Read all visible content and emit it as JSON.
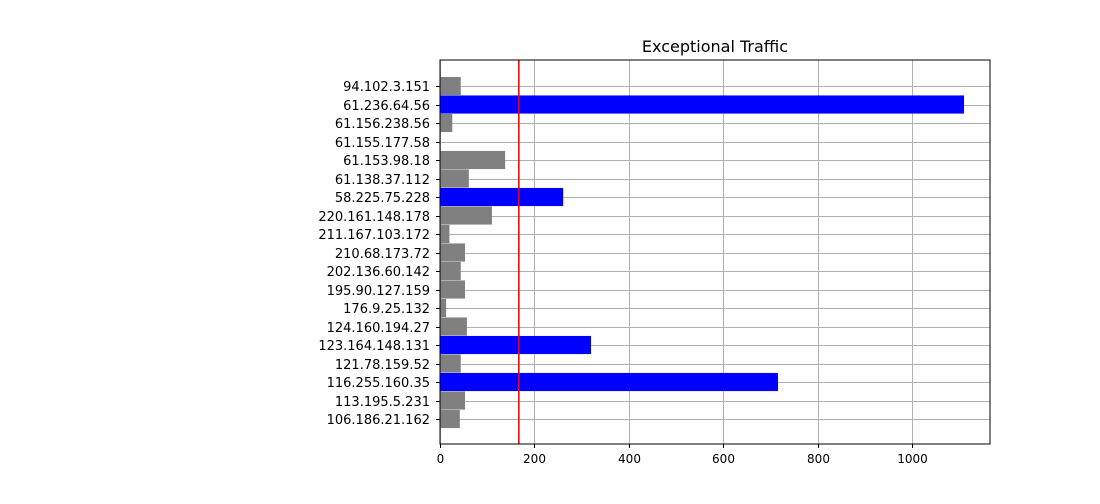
{
  "chart_data": {
    "type": "bar",
    "orientation": "horizontal",
    "title": "Exceptional Traffic",
    "xlabel": "",
    "ylabel": "",
    "xlim": [
      0,
      1165
    ],
    "xticks": [
      0,
      200,
      400,
      600,
      800,
      1000
    ],
    "grid": true,
    "threshold": 167,
    "threshold_color": "#ff0000",
    "colors": {
      "normal": "#808080",
      "exceptional": "#0000ff"
    },
    "categories": [
      "94.102.3.151",
      "61.236.64.56",
      "61.156.238.56",
      "61.155.177.58",
      "61.153.98.18",
      "61.138.37.112",
      "58.225.75.228",
      "220.161.148.178",
      "211.167.103.172",
      "210.68.173.72",
      "202.136.60.142",
      "195.90.127.159",
      "176.9.25.132",
      "124.160.194.27",
      "123.164.148.131",
      "121.78.159.52",
      "116.255.160.35",
      "113.195.5.231",
      "106.186.21.162"
    ],
    "values": [
      44,
      1110,
      26,
      0,
      138,
      61,
      261,
      110,
      20,
      53,
      44,
      53,
      13,
      57,
      320,
      44,
      716,
      53,
      42
    ],
    "exceptional": [
      false,
      true,
      false,
      false,
      false,
      false,
      true,
      false,
      false,
      false,
      false,
      false,
      false,
      false,
      true,
      false,
      true,
      false,
      false
    ]
  }
}
